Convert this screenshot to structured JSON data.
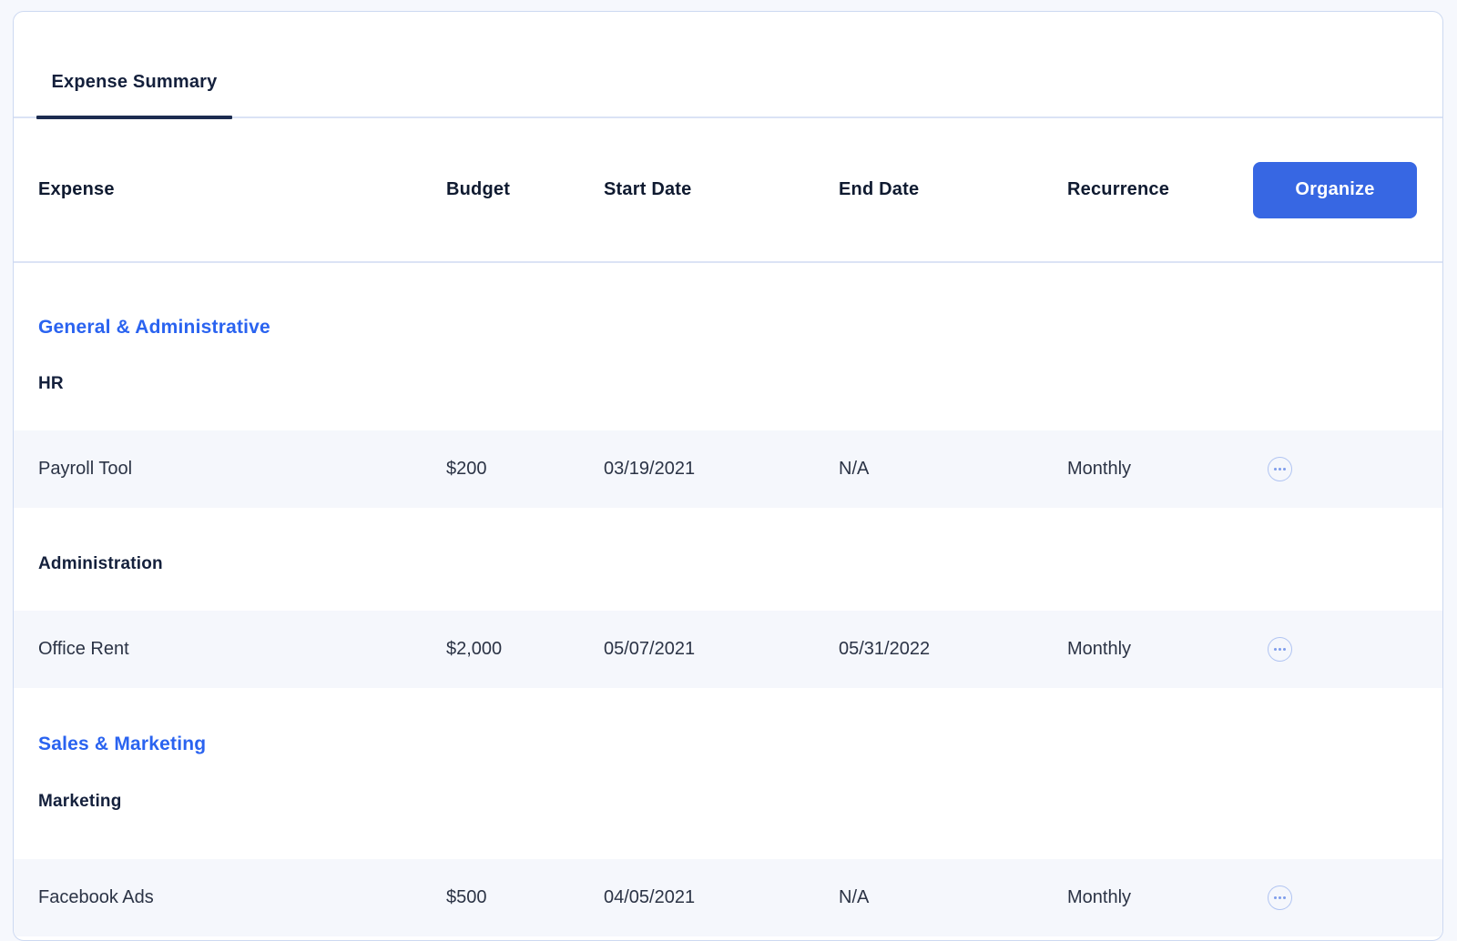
{
  "tabs": [
    {
      "label": "Expense Summary",
      "active": true
    }
  ],
  "table": {
    "columns": [
      "Expense",
      "Budget",
      "Start Date",
      "End Date",
      "Recurrence"
    ],
    "organize_label": "Organize"
  },
  "sections": [
    {
      "name": "General & Administrative",
      "subsections": [
        {
          "name": "HR",
          "rows": [
            {
              "expense": "Payroll Tool",
              "budget": "$200",
              "start_date": "03/19/2021",
              "end_date": "N/A",
              "recurrence": "Monthly"
            }
          ]
        },
        {
          "name": "Administration",
          "rows": [
            {
              "expense": "Office Rent",
              "budget": "$2,000",
              "start_date": "05/07/2021",
              "end_date": "05/31/2022",
              "recurrence": "Monthly"
            }
          ]
        }
      ]
    },
    {
      "name": "Sales & Marketing",
      "subsections": [
        {
          "name": "Marketing",
          "rows": [
            {
              "expense": "Facebook Ads",
              "budget": "$500",
              "start_date": "04/05/2021",
              "end_date": "N/A",
              "recurrence": "Monthly"
            }
          ]
        }
      ]
    }
  ],
  "icons": {
    "row_actions": "ellipsis-icon"
  },
  "colors": {
    "page_bg": "#f6f8fd",
    "card_border": "#cdd9f1",
    "divider": "#dbe3f5",
    "tab_underline": "#1c2c50",
    "accent_blue": "#2a63f0",
    "button_blue": "#3767e3",
    "row_bg": "#f5f7fc",
    "text_dark": "#14203c",
    "text_header": "#0f1a30",
    "text_body": "#2b3345",
    "ellipsis_border": "#b0c4f2",
    "ellipsis_dot": "#7f9deb"
  }
}
